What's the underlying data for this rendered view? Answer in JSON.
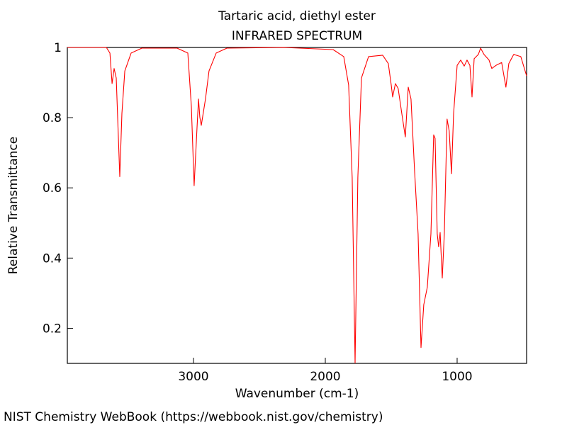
{
  "chart_data": {
    "type": "line",
    "title": "Tartaric acid, diethyl ester",
    "subtitle": "INFRARED SPECTRUM",
    "x_label": "Wavenumber (cm-1)",
    "y_label": "Relative Transmittance",
    "footer": "NIST Chemistry WebBook (https://webbook.nist.gov/chemistry)",
    "color": "#ff0000",
    "xlim": [
      3957,
      473
    ],
    "ylim": [
      0.1,
      1
    ],
    "xticks": [
      3000,
      2000,
      1000
    ],
    "yticks": [
      0.2,
      0.4,
      0.6,
      0.8,
      1
    ],
    "x": [
      3957,
      3661,
      3634,
      3618,
      3602,
      3586,
      3559,
      3543,
      3521,
      3473,
      3392,
      3124,
      3043,
      3016,
      2995,
      2973,
      2962,
      2952,
      2941,
      2909,
      2882,
      2828,
      2747,
      2317,
      1941,
      1860,
      1823,
      1796,
      1774,
      1753,
      1726,
      1672,
      1565,
      1522,
      1500,
      1489,
      1468,
      1447,
      1420,
      1393,
      1371,
      1350,
      1323,
      1296,
      1274,
      1253,
      1226,
      1199,
      1178,
      1167,
      1151,
      1140,
      1129,
      1113,
      1097,
      1076,
      1060,
      1043,
      1027,
      1000,
      973,
      946,
      925,
      903,
      887,
      871,
      839,
      822,
      796,
      758,
      737,
      705,
      662,
      630,
      608,
      571,
      517,
      473
    ],
    "values": [
      1.0,
      1.0,
      0.984,
      0.897,
      0.94,
      0.913,
      0.632,
      0.812,
      0.933,
      0.984,
      0.998,
      0.998,
      0.984,
      0.832,
      0.606,
      0.772,
      0.853,
      0.802,
      0.778,
      0.853,
      0.933,
      0.984,
      0.998,
      1.0,
      0.994,
      0.974,
      0.893,
      0.63,
      0.101,
      0.63,
      0.913,
      0.974,
      0.978,
      0.954,
      0.893,
      0.859,
      0.897,
      0.883,
      0.812,
      0.745,
      0.887,
      0.853,
      0.65,
      0.469,
      0.145,
      0.267,
      0.317,
      0.469,
      0.751,
      0.741,
      0.469,
      0.432,
      0.473,
      0.343,
      0.469,
      0.796,
      0.762,
      0.64,
      0.812,
      0.949,
      0.964,
      0.947,
      0.964,
      0.949,
      0.859,
      0.968,
      0.98,
      0.998,
      0.98,
      0.964,
      0.94,
      0.949,
      0.957,
      0.887,
      0.954,
      0.98,
      0.974,
      0.919
    ]
  }
}
